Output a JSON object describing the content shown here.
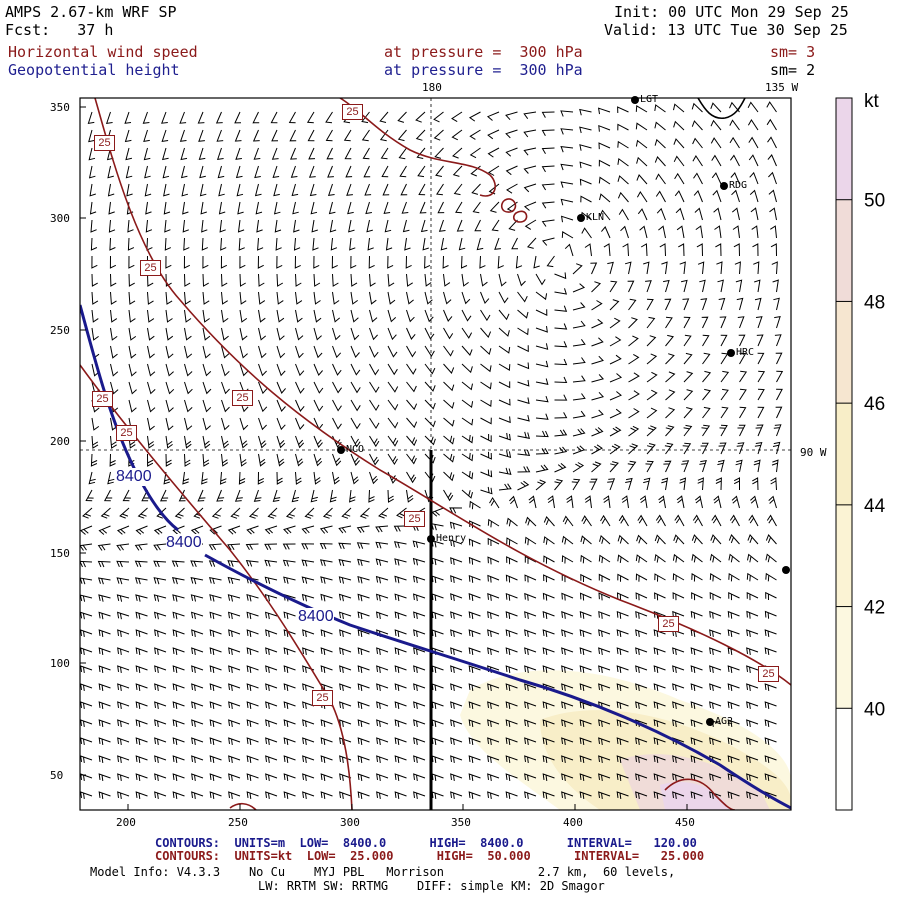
{
  "header": {
    "model_title": "AMPS 2.67-km WRF SP",
    "forecast": "Fcst:   37 h",
    "init": "Init: 00 UTC Mon 29 Sep 25",
    "valid": "Valid: 13 UTC Tue 30 Sep 25",
    "field1_name": "Horizontal wind speed",
    "field1_level": "at pressure =  300 hPa",
    "field1_sm": "sm= 3",
    "field2_name": "Geopotential height",
    "field2_level": "at pressure =  300 hPa",
    "field2_sm": "sm= 2"
  },
  "map": {
    "grid_labels": {
      "top_meridian_180": "180",
      "top_meridian_135w": "135 W",
      "right_parallel": "90 W"
    },
    "x_ticks": [
      "200",
      "250",
      "300",
      "350",
      "400",
      "450"
    ],
    "y_ticks": [
      "350",
      "300",
      "250",
      "200",
      "150",
      "100",
      "50"
    ],
    "stations": [
      {
        "name": "LGT"
      },
      {
        "name": "RDG"
      },
      {
        "name": "KLN"
      },
      {
        "name": "HRC"
      },
      {
        "name": "NCO"
      },
      {
        "name": "Henry"
      },
      {
        "name": "AG2"
      }
    ],
    "height_contour_label": "8400",
    "wind_contour_label": "25",
    "colors": {
      "height_contour": "#1a1a8c",
      "wind_contour": "#8b1a1a",
      "barb": "#000000",
      "shade_40": "#fbf8dc",
      "shade_44": "#f8eec8",
      "shade_48": "#f0dcd8",
      "shade_50": "#ebd6ea"
    }
  },
  "colorbar": {
    "unit": "kt",
    "levels": [
      "50",
      "48",
      "46",
      "44",
      "42",
      "40"
    ],
    "colors": [
      "#ebd6ea",
      "#f0dcd8",
      "#f6e6d0",
      "#f8eec8",
      "#fbf3d4",
      "#fcf8e0",
      "#fffffe"
    ]
  },
  "footer": {
    "contours1": "CONTOURS:  UNITS=m  LOW=  8400.0      HIGH=  8400.0      INTERVAL=   120.00",
    "contours2": "CONTOURS:  UNITS=kt  LOW=  25.000      HIGH=  50.000      INTERVAL=   25.000",
    "model_info": "Model Info: V4.3.3    No Cu    MYJ PBL   Morrison             2.7 km,  60 levels,",
    "physics": "LW: RRTM SW: RRTMG    DIFF: simple KM: 2D Smagor"
  }
}
